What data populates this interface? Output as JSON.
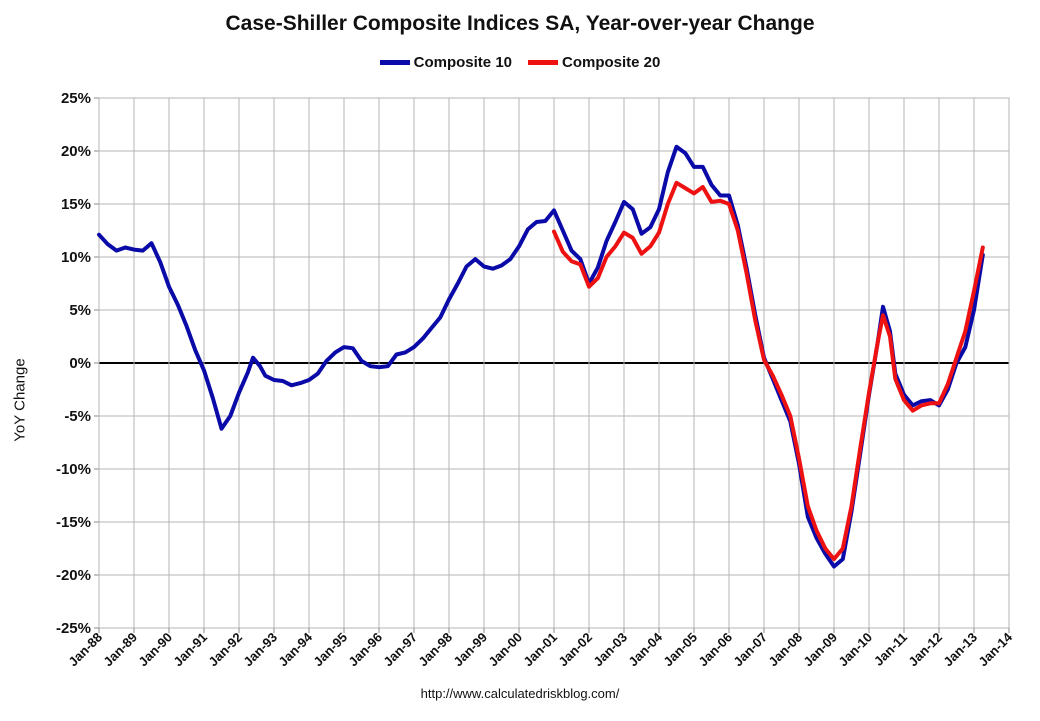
{
  "chart_data": {
    "type": "line",
    "title": "Case-Shiller Composite Indices SA, Year-over-year Change",
    "xlabel": "",
    "ylabel": "YoY Change",
    "source": "http://www.calculatedriskblog.com/",
    "ylim": [
      -25,
      25
    ],
    "xlim": [
      1988.0,
      2014.0
    ],
    "yticks": [
      "25%",
      "20%",
      "15%",
      "10%",
      "5%",
      "0%",
      "-5%",
      "-10%",
      "-15%",
      "-20%",
      "-25%"
    ],
    "ytick_values": [
      25,
      20,
      15,
      10,
      5,
      0,
      -5,
      -10,
      -15,
      -20,
      -25
    ],
    "xticks": [
      "Jan-88",
      "Jan-89",
      "Jan-90",
      "Jan-91",
      "Jan-92",
      "Jan-93",
      "Jan-94",
      "Jan-95",
      "Jan-96",
      "Jan-97",
      "Jan-98",
      "Jan-99",
      "Jan-00",
      "Jan-01",
      "Jan-02",
      "Jan-03",
      "Jan-04",
      "Jan-05",
      "Jan-06",
      "Jan-07",
      "Jan-08",
      "Jan-09",
      "Jan-10",
      "Jan-11",
      "Jan-12",
      "Jan-13",
      "Jan-14"
    ],
    "grid": true,
    "legend_position": "top-center",
    "series": [
      {
        "name": "Composite 10",
        "color": "#0a0aa8",
        "points": [
          [
            1988.0,
            12.1
          ],
          [
            1988.25,
            11.2
          ],
          [
            1988.5,
            10.6
          ],
          [
            1988.75,
            10.9
          ],
          [
            1989.0,
            10.7
          ],
          [
            1989.25,
            10.6
          ],
          [
            1989.5,
            11.3
          ],
          [
            1989.75,
            9.5
          ],
          [
            1990.0,
            7.2
          ],
          [
            1990.25,
            5.5
          ],
          [
            1990.5,
            3.5
          ],
          [
            1990.75,
            1.2
          ],
          [
            1991.0,
            -0.7
          ],
          [
            1991.25,
            -3.3
          ],
          [
            1991.5,
            -6.2
          ],
          [
            1991.75,
            -5.0
          ],
          [
            1992.0,
            -2.8
          ],
          [
            1992.25,
            -0.9
          ],
          [
            1992.4,
            0.5
          ],
          [
            1992.6,
            -0.3
          ],
          [
            1992.75,
            -1.2
          ],
          [
            1993.0,
            -1.6
          ],
          [
            1993.25,
            -1.7
          ],
          [
            1993.5,
            -2.1
          ],
          [
            1993.75,
            -1.9
          ],
          [
            1994.0,
            -1.6
          ],
          [
            1994.25,
            -1.0
          ],
          [
            1994.5,
            0.2
          ],
          [
            1994.75,
            1.0
          ],
          [
            1995.0,
            1.5
          ],
          [
            1995.25,
            1.4
          ],
          [
            1995.5,
            0.2
          ],
          [
            1995.75,
            -0.3
          ],
          [
            1996.0,
            -0.4
          ],
          [
            1996.25,
            -0.3
          ],
          [
            1996.5,
            0.8
          ],
          [
            1996.75,
            1.0
          ],
          [
            1997.0,
            1.5
          ],
          [
            1997.25,
            2.3
          ],
          [
            1997.5,
            3.3
          ],
          [
            1997.75,
            4.3
          ],
          [
            1998.0,
            6.0
          ],
          [
            1998.25,
            7.5
          ],
          [
            1998.5,
            9.1
          ],
          [
            1998.75,
            9.8
          ],
          [
            1999.0,
            9.1
          ],
          [
            1999.25,
            8.9
          ],
          [
            1999.5,
            9.2
          ],
          [
            1999.75,
            9.8
          ],
          [
            2000.0,
            11.0
          ],
          [
            2000.25,
            12.6
          ],
          [
            2000.5,
            13.3
          ],
          [
            2000.75,
            13.4
          ],
          [
            2001.0,
            14.4
          ],
          [
            2001.25,
            12.5
          ],
          [
            2001.5,
            10.6
          ],
          [
            2001.75,
            9.8
          ],
          [
            2002.0,
            7.5
          ],
          [
            2002.25,
            9.0
          ],
          [
            2002.5,
            11.5
          ],
          [
            2002.75,
            13.3
          ],
          [
            2003.0,
            15.2
          ],
          [
            2003.25,
            14.5
          ],
          [
            2003.5,
            12.2
          ],
          [
            2003.75,
            12.8
          ],
          [
            2004.0,
            14.5
          ],
          [
            2004.25,
            18.0
          ],
          [
            2004.5,
            20.4
          ],
          [
            2004.75,
            19.8
          ],
          [
            2005.0,
            18.5
          ],
          [
            2005.25,
            18.5
          ],
          [
            2005.5,
            16.8
          ],
          [
            2005.75,
            15.8
          ],
          [
            2006.0,
            15.8
          ],
          [
            2006.25,
            13.0
          ],
          [
            2006.5,
            9.0
          ],
          [
            2006.75,
            4.5
          ],
          [
            2007.0,
            0.5
          ],
          [
            2007.25,
            -1.5
          ],
          [
            2007.5,
            -3.5
          ],
          [
            2007.75,
            -5.5
          ],
          [
            2008.0,
            -9.5
          ],
          [
            2008.25,
            -14.5
          ],
          [
            2008.5,
            -16.5
          ],
          [
            2008.75,
            -18.0
          ],
          [
            2009.0,
            -19.2
          ],
          [
            2009.25,
            -18.5
          ],
          [
            2009.5,
            -14.0
          ],
          [
            2009.75,
            -8.5
          ],
          [
            2010.0,
            -3.0
          ],
          [
            2010.25,
            2.0
          ],
          [
            2010.4,
            5.3
          ],
          [
            2010.6,
            3.0
          ],
          [
            2010.75,
            -1.0
          ],
          [
            2011.0,
            -3.0
          ],
          [
            2011.25,
            -4.0
          ],
          [
            2011.5,
            -3.6
          ],
          [
            2011.75,
            -3.5
          ],
          [
            2012.0,
            -4.0
          ],
          [
            2012.25,
            -2.5
          ],
          [
            2012.5,
            0.0
          ],
          [
            2012.75,
            1.5
          ],
          [
            2013.0,
            5.0
          ],
          [
            2013.25,
            10.2
          ]
        ]
      },
      {
        "name": "Composite 20",
        "color": "#ee1111",
        "points": [
          [
            2001.0,
            12.4
          ],
          [
            2001.25,
            10.5
          ],
          [
            2001.5,
            9.6
          ],
          [
            2001.75,
            9.3
          ],
          [
            2002.0,
            7.2
          ],
          [
            2002.25,
            8.0
          ],
          [
            2002.5,
            10.0
          ],
          [
            2002.75,
            11.0
          ],
          [
            2003.0,
            12.3
          ],
          [
            2003.25,
            11.8
          ],
          [
            2003.5,
            10.3
          ],
          [
            2003.75,
            11.0
          ],
          [
            2004.0,
            12.3
          ],
          [
            2004.25,
            15.0
          ],
          [
            2004.5,
            17.0
          ],
          [
            2004.75,
            16.5
          ],
          [
            2005.0,
            16.0
          ],
          [
            2005.25,
            16.6
          ],
          [
            2005.5,
            15.2
          ],
          [
            2005.75,
            15.3
          ],
          [
            2006.0,
            15.0
          ],
          [
            2006.25,
            12.5
          ],
          [
            2006.5,
            8.5
          ],
          [
            2006.75,
            4.0
          ],
          [
            2007.0,
            0.3
          ],
          [
            2007.25,
            -1.2
          ],
          [
            2007.5,
            -3.0
          ],
          [
            2007.75,
            -5.0
          ],
          [
            2008.0,
            -9.0
          ],
          [
            2008.25,
            -13.5
          ],
          [
            2008.5,
            -15.8
          ],
          [
            2008.75,
            -17.5
          ],
          [
            2009.0,
            -18.5
          ],
          [
            2009.25,
            -17.5
          ],
          [
            2009.5,
            -13.5
          ],
          [
            2009.75,
            -8.0
          ],
          [
            2010.0,
            -2.8
          ],
          [
            2010.25,
            2.0
          ],
          [
            2010.4,
            4.5
          ],
          [
            2010.6,
            2.5
          ],
          [
            2010.75,
            -1.5
          ],
          [
            2011.0,
            -3.5
          ],
          [
            2011.25,
            -4.5
          ],
          [
            2011.5,
            -4.0
          ],
          [
            2011.75,
            -3.8
          ],
          [
            2012.0,
            -3.8
          ],
          [
            2012.25,
            -2.0
          ],
          [
            2012.5,
            0.5
          ],
          [
            2012.75,
            3.0
          ],
          [
            2013.0,
            6.8
          ],
          [
            2013.25,
            10.9
          ]
        ]
      }
    ]
  }
}
